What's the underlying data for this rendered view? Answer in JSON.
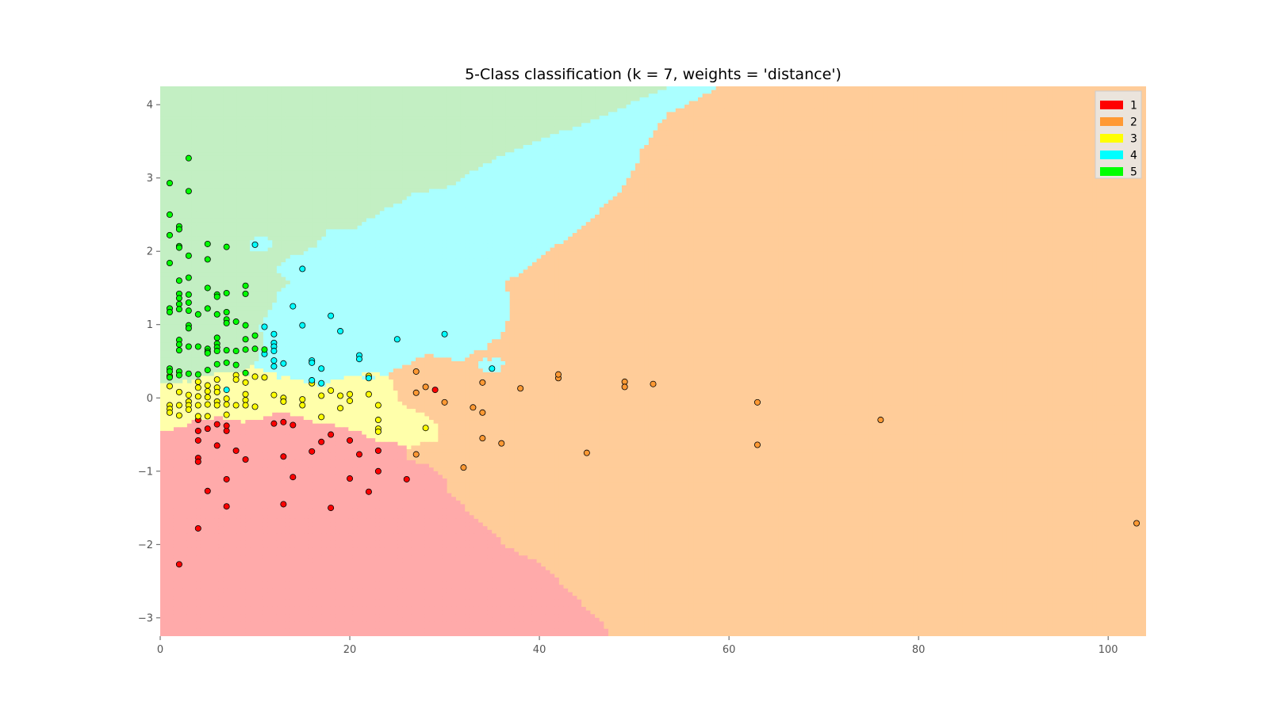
{
  "chart_data": {
    "type": "scatter",
    "title": "5-Class classification (k = 7, weights = 'distance')",
    "xlabel": "",
    "ylabel": "",
    "xlim": [
      0,
      104
    ],
    "ylim": [
      -3.25,
      4.25
    ],
    "xticks": [
      0,
      20,
      40,
      60,
      80,
      100
    ],
    "yticks": [
      -3,
      -2,
      -1,
      0,
      1,
      2,
      3,
      4
    ],
    "grid": false,
    "legend_position": "top-right",
    "classes": [
      {
        "name": "1",
        "color": "#ff0000",
        "region_color": "#ffaaaa"
      },
      {
        "name": "2",
        "color": "#ff9933",
        "region_color": "#ffcc99"
      },
      {
        "name": "3",
        "color": "#ffff00",
        "region_color": "#ffffaa"
      },
      {
        "name": "4",
        "color": "#00ffff",
        "region_color": "#aaffff"
      },
      {
        "name": "5",
        "color": "#00ff00",
        "region_color": "#c3efc3"
      }
    ],
    "series": [
      {
        "name": "1",
        "points": [
          [
            2,
            -2.27
          ],
          [
            4,
            -1.78
          ],
          [
            4,
            -0.82
          ],
          [
            4,
            -0.87
          ],
          [
            4,
            -0.58
          ],
          [
            4,
            -0.45
          ],
          [
            4,
            -0.3
          ],
          [
            5,
            -0.42
          ],
          [
            5,
            -1.27
          ],
          [
            6,
            -0.36
          ],
          [
            6,
            -0.65
          ],
          [
            7,
            -1.11
          ],
          [
            7,
            -1.48
          ],
          [
            7,
            -0.45
          ],
          [
            7,
            -0.38
          ],
          [
            8,
            -0.72
          ],
          [
            9,
            -0.84
          ],
          [
            12,
            -0.35
          ],
          [
            13,
            -0.33
          ],
          [
            13,
            -0.8
          ],
          [
            13,
            -1.45
          ],
          [
            14,
            -1.08
          ],
          [
            14,
            -0.37
          ],
          [
            16,
            -0.73
          ],
          [
            17,
            -0.6
          ],
          [
            18,
            -0.5
          ],
          [
            18,
            -1.5
          ],
          [
            20,
            -0.58
          ],
          [
            20,
            -1.1
          ],
          [
            21,
            -0.77
          ],
          [
            22,
            -1.28
          ],
          [
            23,
            -0.72
          ],
          [
            23,
            -1.0
          ],
          [
            26,
            -1.11
          ],
          [
            29,
            0.11
          ]
        ]
      },
      {
        "name": "2",
        "points": [
          [
            27,
            0.36
          ],
          [
            27,
            0.07
          ],
          [
            27,
            -0.77
          ],
          [
            28,
            0.15
          ],
          [
            30,
            -0.06
          ],
          [
            32,
            -0.95
          ],
          [
            33,
            -0.13
          ],
          [
            34,
            0.21
          ],
          [
            34,
            -0.2
          ],
          [
            34,
            -0.55
          ],
          [
            36,
            -0.62
          ],
          [
            38,
            0.13
          ],
          [
            42,
            0.27
          ],
          [
            42,
            0.32
          ],
          [
            45,
            -0.75
          ],
          [
            49,
            0.22
          ],
          [
            49,
            0.15
          ],
          [
            52,
            0.19
          ],
          [
            63,
            -0.06
          ],
          [
            63,
            -0.64
          ],
          [
            76,
            -0.3
          ],
          [
            103,
            -1.71
          ]
        ]
      },
      {
        "name": "3",
        "points": [
          [
            1,
            0.3
          ],
          [
            1,
            0.16
          ],
          [
            1,
            -0.1
          ],
          [
            1,
            -0.15
          ],
          [
            1,
            -0.2
          ],
          [
            2,
            -0.1
          ],
          [
            2,
            0.08
          ],
          [
            2,
            -0.24
          ],
          [
            3,
            0.04
          ],
          [
            3,
            -0.05
          ],
          [
            3,
            -0.1
          ],
          [
            3,
            -0.16
          ],
          [
            4,
            0.22
          ],
          [
            4,
            0.14
          ],
          [
            4,
            0.02
          ],
          [
            4,
            -0.1
          ],
          [
            4,
            -0.25
          ],
          [
            5,
            0.17
          ],
          [
            5,
            0.09
          ],
          [
            5,
            0.01
          ],
          [
            5,
            -0.09
          ],
          [
            5,
            -0.25
          ],
          [
            6,
            0.25
          ],
          [
            6,
            0.14
          ],
          [
            6,
            0.08
          ],
          [
            6,
            -0.05
          ],
          [
            6,
            -0.1
          ],
          [
            7,
            -0.01
          ],
          [
            7,
            -0.09
          ],
          [
            7,
            -0.23
          ],
          [
            8,
            0.31
          ],
          [
            8,
            0.25
          ],
          [
            8,
            -0.1
          ],
          [
            9,
            0.21
          ],
          [
            9,
            0.05
          ],
          [
            9,
            -0.03
          ],
          [
            9,
            -0.1
          ],
          [
            10,
            0.29
          ],
          [
            10,
            -0.12
          ],
          [
            11,
            0.28
          ],
          [
            12,
            0.04
          ],
          [
            13,
            0.0
          ],
          [
            13,
            -0.05
          ],
          [
            15,
            -0.02
          ],
          [
            15,
            -0.1
          ],
          [
            16,
            0.2
          ],
          [
            17,
            0.03
          ],
          [
            17,
            -0.26
          ],
          [
            18,
            0.1
          ],
          [
            19,
            0.03
          ],
          [
            19,
            -0.14
          ],
          [
            20,
            0.05
          ],
          [
            20,
            -0.04
          ],
          [
            22,
            0.3
          ],
          [
            22,
            0.05
          ],
          [
            23,
            -0.1
          ],
          [
            23,
            -0.3
          ],
          [
            23,
            -0.42
          ],
          [
            23,
            -0.46
          ],
          [
            28,
            -0.41
          ]
        ]
      },
      {
        "name": "4",
        "points": [
          [
            7,
            0.11
          ],
          [
            10,
            2.09
          ],
          [
            11,
            0.97
          ],
          [
            11,
            0.6
          ],
          [
            12,
            0.87
          ],
          [
            12,
            0.75
          ],
          [
            12,
            0.7
          ],
          [
            12,
            0.64
          ],
          [
            12,
            0.51
          ],
          [
            12,
            0.43
          ],
          [
            13,
            0.47
          ],
          [
            14,
            1.25
          ],
          [
            15,
            1.76
          ],
          [
            15,
            0.99
          ],
          [
            16,
            0.51
          ],
          [
            16,
            0.48
          ],
          [
            16,
            0.24
          ],
          [
            17,
            0.4
          ],
          [
            17,
            0.2
          ],
          [
            18,
            1.12
          ],
          [
            19,
            0.91
          ],
          [
            21,
            0.58
          ],
          [
            21,
            0.53
          ],
          [
            22,
            0.27
          ],
          [
            25,
            0.8
          ],
          [
            30,
            0.87
          ],
          [
            35,
            0.4
          ]
        ]
      },
      {
        "name": "5",
        "points": [
          [
            1,
            2.93
          ],
          [
            1,
            2.5
          ],
          [
            1,
            2.22
          ],
          [
            1,
            1.84
          ],
          [
            1,
            1.22
          ],
          [
            1,
            1.17
          ],
          [
            1,
            0.4
          ],
          [
            1,
            0.36
          ],
          [
            1,
            0.28
          ],
          [
            2,
            2.34
          ],
          [
            2,
            2.3
          ],
          [
            2,
            2.07
          ],
          [
            2,
            2.05
          ],
          [
            2,
            1.6
          ],
          [
            2,
            1.42
          ],
          [
            2,
            1.36
          ],
          [
            2,
            1.28
          ],
          [
            2,
            1.21
          ],
          [
            2,
            0.79
          ],
          [
            2,
            0.73
          ],
          [
            2,
            0.65
          ],
          [
            2,
            0.36
          ],
          [
            2,
            0.31
          ],
          [
            3,
            3.27
          ],
          [
            3,
            2.82
          ],
          [
            3,
            1.94
          ],
          [
            3,
            1.64
          ],
          [
            3,
            1.41
          ],
          [
            3,
            1.3
          ],
          [
            3,
            1.19
          ],
          [
            3,
            0.99
          ],
          [
            3,
            0.95
          ],
          [
            3,
            0.7
          ],
          [
            3,
            0.33
          ],
          [
            4,
            1.14
          ],
          [
            4,
            0.7
          ],
          [
            4,
            0.32
          ],
          [
            5,
            2.1
          ],
          [
            5,
            1.89
          ],
          [
            5,
            1.5
          ],
          [
            5,
            1.22
          ],
          [
            5,
            0.67
          ],
          [
            5,
            0.63
          ],
          [
            5,
            0.61
          ],
          [
            5,
            0.38
          ],
          [
            6,
            1.41
          ],
          [
            6,
            1.38
          ],
          [
            6,
            1.14
          ],
          [
            6,
            0.82
          ],
          [
            6,
            0.74
          ],
          [
            6,
            0.69
          ],
          [
            6,
            0.64
          ],
          [
            6,
            0.46
          ],
          [
            7,
            2.06
          ],
          [
            7,
            1.43
          ],
          [
            7,
            1.17
          ],
          [
            7,
            1.07
          ],
          [
            7,
            1.02
          ],
          [
            7,
            0.65
          ],
          [
            7,
            0.48
          ],
          [
            8,
            1.04
          ],
          [
            8,
            0.64
          ],
          [
            8,
            0.45
          ],
          [
            9,
            1.53
          ],
          [
            9,
            1.42
          ],
          [
            9,
            0.99
          ],
          [
            9,
            0.8
          ],
          [
            9,
            0.66
          ],
          [
            9,
            0.34
          ],
          [
            10,
            0.85
          ],
          [
            10,
            0.67
          ],
          [
            11,
            0.66
          ]
        ]
      }
    ]
  }
}
